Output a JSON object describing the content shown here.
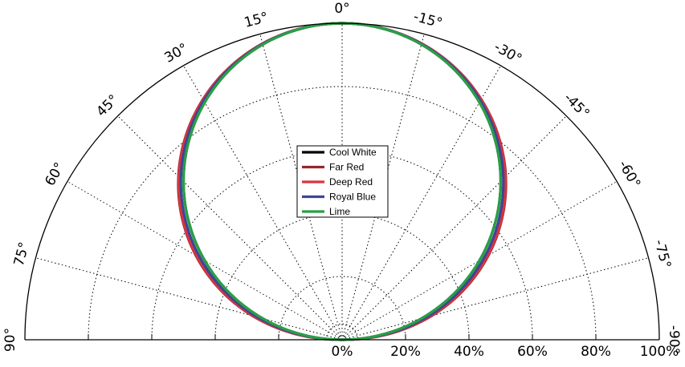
{
  "chart_data": {
    "type": "line",
    "coordinate_system": "polar-half",
    "angle_tick_labels": [
      "90°",
      "75°",
      "60°",
      "45°",
      "30°",
      "15°",
      "0°",
      "-15°",
      "-30°",
      "-45°",
      "-60°",
      "-75°",
      "-90°"
    ],
    "radial_tick_labels": [
      "0%",
      "20%",
      "40%",
      "60%",
      "80%",
      "100%"
    ],
    "radial_range": [
      0,
      100
    ],
    "angle_range_deg": [
      -90,
      90
    ],
    "grid": true,
    "legend_position": "center",
    "series": [
      {
        "name": "Cool White",
        "color": "#000000",
        "peak_percent": 100,
        "shape": "cosine",
        "width_factor": 1.0
      },
      {
        "name": "Far Red",
        "color": "#96262d",
        "peak_percent": 100,
        "shape": "cosine",
        "width_factor": 1.1
      },
      {
        "name": "Deep Red",
        "color": "#d9353f",
        "peak_percent": 100,
        "shape": "cosine",
        "width_factor": 1.09
      },
      {
        "name": "Royal Blue",
        "color": "#3d4596",
        "peak_percent": 100,
        "shape": "cosine",
        "width_factor": 1.05
      },
      {
        "name": "Lime",
        "color": "#28a046",
        "peak_percent": 100,
        "shape": "cosine",
        "width_factor": 1.0
      }
    ]
  }
}
